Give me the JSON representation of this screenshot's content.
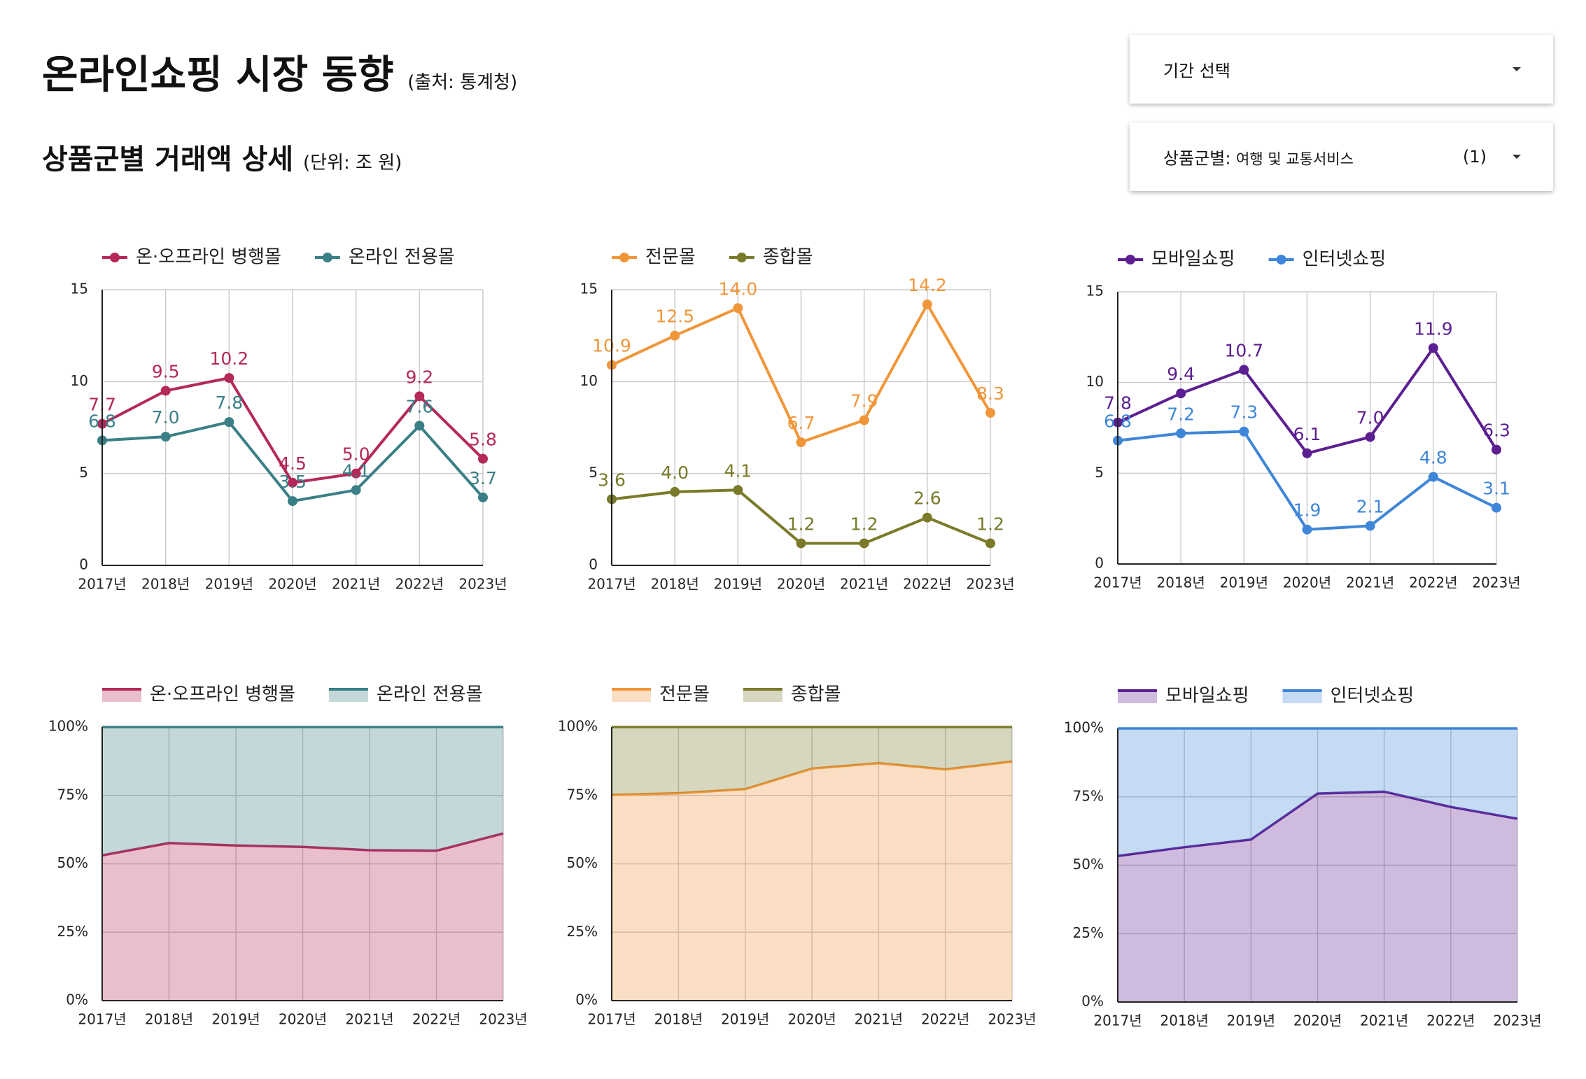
{
  "header": {
    "title": "온라인쇼핑 시장 동향",
    "source": "(출처: 통계청)",
    "section_title": "상품군별 거래액 상세",
    "unit": "(단위: 조 원)"
  },
  "controls": {
    "period": "기간 선택",
    "category_label": "상품군별:",
    "category_value": "여행 및 교통서비스",
    "category_count": "(1)"
  },
  "chart_data": [
    {
      "type": "line",
      "categories": [
        "2017년",
        "2018년",
        "2019년",
        "2020년",
        "2021년",
        "2022년",
        "2023년"
      ],
      "series": [
        {
          "name": "온·오프라인 병행몰",
          "color": "#b5285a",
          "values": [
            7.7,
            9.5,
            10.2,
            4.5,
            5.0,
            9.2,
            5.8
          ],
          "value_labels": [
            "7.7",
            "9.5",
            "10.2",
            "4.5",
            "5.0",
            "9.2",
            "5.8"
          ]
        },
        {
          "name": "온라인 전용몰",
          "color": "#3a7f86",
          "values": [
            6.8,
            7.0,
            7.8,
            3.5,
            4.1,
            7.6,
            3.7
          ],
          "value_labels": [
            "6.8",
            "7.0",
            "7.8",
            "3.5",
            "4.1",
            "7.6",
            "3.7"
          ]
        }
      ],
      "ylim": [
        0,
        15
      ],
      "yticks": [
        0,
        5,
        10,
        15
      ],
      "grid": true,
      "legend": "top"
    },
    {
      "type": "line",
      "categories": [
        "2017년",
        "2018년",
        "2019년",
        "2020년",
        "2021년",
        "2022년",
        "2023년"
      ],
      "series": [
        {
          "name": "전문몰",
          "color": "#f0963a",
          "values": [
            10.9,
            12.5,
            14.0,
            6.7,
            7.9,
            14.2,
            8.3
          ],
          "value_labels": [
            "10.9",
            "12.5",
            "14.0",
            "6.7",
            "7.9",
            "14.2",
            "8.3"
          ]
        },
        {
          "name": "종합몰",
          "color": "#7a7a2a",
          "values": [
            3.6,
            4.0,
            4.1,
            1.2,
            1.2,
            2.6,
            1.2
          ],
          "value_labels": [
            "3.6",
            "4.0",
            "4.1",
            "1.2",
            "1.2",
            "2.6",
            "1.2"
          ]
        }
      ],
      "ylim": [
        0,
        15
      ],
      "yticks": [
        0,
        5,
        10,
        15
      ],
      "grid": true,
      "legend": "top"
    },
    {
      "type": "line",
      "categories": [
        "2017년",
        "2018년",
        "2019년",
        "2020년",
        "2021년",
        "2022년",
        "2023년"
      ],
      "series": [
        {
          "name": "모바일쇼핑",
          "color": "#5c1f91",
          "values": [
            7.8,
            9.4,
            10.7,
            6.1,
            7.0,
            11.9,
            6.3
          ],
          "value_labels": [
            "7.8",
            "9.4",
            "10.7",
            "6.1",
            "7.0",
            "11.9",
            "6.3"
          ]
        },
        {
          "name": "인터넷쇼핑",
          "color": "#3f86d8",
          "values": [
            6.8,
            7.2,
            7.3,
            1.9,
            2.1,
            4.8,
            3.1
          ],
          "value_labels": [
            "6.8",
            "7.2",
            "7.3",
            "1.9",
            "2.1",
            "4.8",
            "3.1"
          ]
        }
      ],
      "ylim": [
        0,
        15
      ],
      "yticks": [
        0,
        5,
        10,
        15
      ],
      "grid": true,
      "legend": "top"
    },
    {
      "type": "area",
      "stacked": "percent",
      "categories": [
        "2017년",
        "2018년",
        "2019년",
        "2020년",
        "2021년",
        "2022년",
        "2023년"
      ],
      "series": [
        {
          "name": "온·오프라인 병행몰",
          "color": "#b5285a",
          "values": [
            53.1,
            57.6,
            56.7,
            56.2,
            55.0,
            54.8,
            61.1
          ]
        },
        {
          "name": "온라인 전용몰",
          "color": "#3a7f86",
          "values": [
            46.9,
            42.4,
            43.3,
            43.8,
            45.0,
            45.2,
            38.9
          ]
        }
      ],
      "ylim": [
        0,
        100
      ],
      "yticks": [
        {
          "value": 0,
          "label": "0%"
        },
        {
          "value": 25,
          "label": "25%"
        },
        {
          "value": 50,
          "label": "50%"
        },
        {
          "value": 75,
          "label": "75%"
        },
        {
          "value": 100,
          "label": "100%"
        }
      ],
      "grid": true,
      "legend": "top"
    },
    {
      "type": "area",
      "stacked": "percent",
      "categories": [
        "2017년",
        "2018년",
        "2019년",
        "2020년",
        "2021년",
        "2022년",
        "2023년"
      ],
      "series": [
        {
          "name": "전문몰",
          "color": "#f0963a",
          "values": [
            75.2,
            75.8,
            77.3,
            84.8,
            86.8,
            84.5,
            87.4
          ]
        },
        {
          "name": "종합몰",
          "color": "#7a7a2a",
          "values": [
            24.8,
            24.2,
            22.7,
            15.2,
            13.2,
            15.5,
            12.6
          ]
        }
      ],
      "ylim": [
        0,
        100
      ],
      "yticks": [
        {
          "value": 0,
          "label": "0%"
        },
        {
          "value": 25,
          "label": "25%"
        },
        {
          "value": 50,
          "label": "50%"
        },
        {
          "value": 75,
          "label": "75%"
        },
        {
          "value": 100,
          "label": "100%"
        }
      ],
      "grid": true,
      "legend": "top"
    },
    {
      "type": "area",
      "stacked": "percent",
      "categories": [
        "2017년",
        "2018년",
        "2019년",
        "2020년",
        "2021년",
        "2022년",
        "2023년"
      ],
      "series": [
        {
          "name": "모바일쇼핑",
          "color": "#5c1f91",
          "values": [
            53.4,
            56.6,
            59.4,
            76.2,
            76.9,
            71.3,
            67.0
          ]
        },
        {
          "name": "인터넷쇼핑",
          "color": "#3f86d8",
          "values": [
            46.6,
            43.4,
            40.6,
            23.8,
            23.1,
            28.7,
            33.0
          ]
        }
      ],
      "ylim": [
        0,
        100
      ],
      "yticks": [
        {
          "value": 0,
          "label": "0%"
        },
        {
          "value": 25,
          "label": "25%"
        },
        {
          "value": 50,
          "label": "50%"
        },
        {
          "value": 75,
          "label": "75%"
        },
        {
          "value": 100,
          "label": "100%"
        }
      ],
      "grid": true,
      "legend": "top"
    }
  ]
}
